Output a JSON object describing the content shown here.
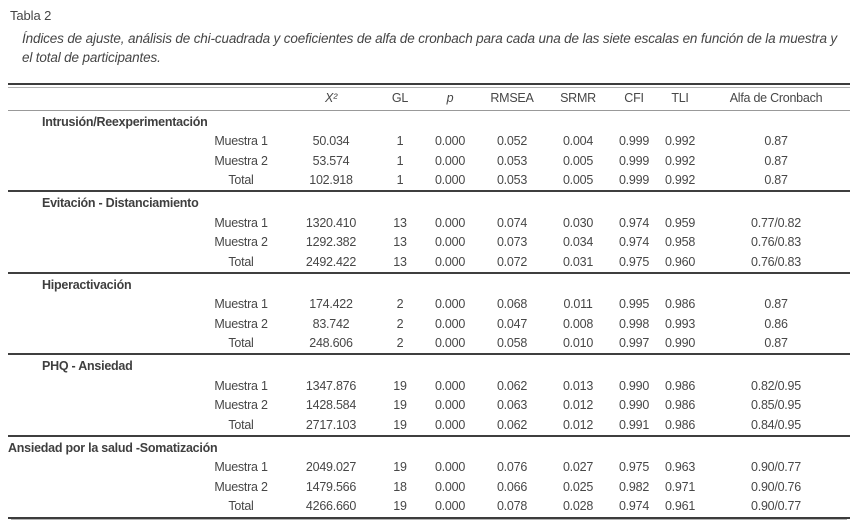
{
  "page": {
    "table_label": "Tabla 2",
    "caption": "Índices de ajuste, análisis de chi-cuadrada y coeficientes de alfa de cronbach para cada una de las siete escalas en función de la muestra y el total de participantes."
  },
  "table": {
    "columns": [
      "",
      "X²",
      "GL",
      "p",
      "RMSEA",
      "SRMR",
      "CFI",
      "TLI",
      "Alfa de Cronbach"
    ],
    "column_keys": [
      "x2",
      "gl",
      "p",
      "rmsea",
      "srmr",
      "cfi",
      "tli",
      "alfa-de-cronbach"
    ],
    "sections": [
      {
        "name": "Intrusión/Reexperimentación",
        "indent": true,
        "rows": [
          {
            "label": "Muestra 1",
            "values": [
              "50.034",
              "1",
              "0.000",
              "0.052",
              "0.004",
              "0.999",
              "0.992",
              "0.87"
            ]
          },
          {
            "label": "Muestra 2",
            "values": [
              "53.574",
              "1",
              "0.000",
              "0.053",
              "0.005",
              "0.999",
              "0.992",
              "0.87"
            ]
          },
          {
            "label": "Total",
            "values": [
              "102.918",
              "1",
              "0.000",
              "0.053",
              "0.005",
              "0.999",
              "0.992",
              "0.87"
            ]
          }
        ]
      },
      {
        "name": "Evitación - Distanciamiento",
        "indent": true,
        "rows": [
          {
            "label": "Muestra 1",
            "values": [
              "1320.410",
              "13",
              "0.000",
              "0.074",
              "0.030",
              "0.974",
              "0.959",
              "0.77/0.82"
            ]
          },
          {
            "label": "Muestra 2",
            "values": [
              "1292.382",
              "13",
              "0.000",
              "0.073",
              "0.034",
              "0.974",
              "0.958",
              "0.76/0.83"
            ]
          },
          {
            "label": "Total",
            "values": [
              "2492.422",
              "13",
              "0.000",
              "0.072",
              "0.031",
              "0.975",
              "0.960",
              "0.76/0.83"
            ]
          }
        ]
      },
      {
        "name": "Hiperactivación",
        "indent": true,
        "rows": [
          {
            "label": "Muestra 1",
            "values": [
              "174.422",
              "2",
              "0.000",
              "0.068",
              "0.011",
              "0.995",
              "0.986",
              "0.87"
            ]
          },
          {
            "label": "Muestra 2",
            "values": [
              "83.742",
              "2",
              "0.000",
              "0.047",
              "0.008",
              "0.998",
              "0.993",
              "0.86"
            ]
          },
          {
            "label": "Total",
            "values": [
              "248.606",
              "2",
              "0.000",
              "0.058",
              "0.010",
              "0.997",
              "0.990",
              "0.87"
            ]
          }
        ]
      },
      {
        "name": "PHQ - Ansiedad",
        "indent": true,
        "rows": [
          {
            "label": "Muestra 1",
            "values": [
              "1347.876",
              "19",
              "0.000",
              "0.062",
              "0.013",
              "0.990",
              "0.986",
              "0.82/0.95"
            ]
          },
          {
            "label": "Muestra 2",
            "values": [
              "1428.584",
              "19",
              "0.000",
              "0.063",
              "0.012",
              "0.990",
              "0.986",
              "0.85/0.95"
            ]
          },
          {
            "label": "Total",
            "values": [
              "2717.103",
              "19",
              "0.000",
              "0.062",
              "0.012",
              "0.991",
              "0.986",
              "0.84/0.95"
            ]
          }
        ]
      },
      {
        "name": "Ansiedad por la salud -Somatización",
        "indent": false,
        "rows": [
          {
            "label": "Muestra 1",
            "values": [
              "2049.027",
              "19",
              "0.000",
              "0.076",
              "0.027",
              "0.975",
              "0.963",
              "0.90/0.77"
            ]
          },
          {
            "label": "Muestra 2",
            "values": [
              "1479.566",
              "18",
              "0.000",
              "0.066",
              "0.025",
              "0.982",
              "0.971",
              "0.90/0.76"
            ]
          },
          {
            "label": "Total",
            "values": [
              "4266.660",
              "19",
              "0.000",
              "0.078",
              "0.028",
              "0.974",
              "0.961",
              "0.90/0.77"
            ]
          }
        ]
      }
    ]
  }
}
